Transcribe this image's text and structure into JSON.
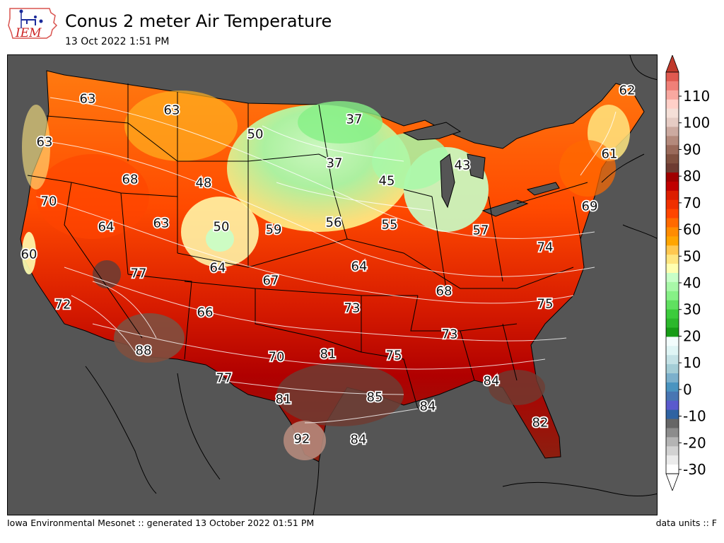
{
  "header": {
    "logo_text": "IEM",
    "title": "Conus 2 meter Air Temperature",
    "subtitle": "13 Oct 2022 1:51 PM"
  },
  "footer": {
    "left": "Iowa Environmental Mesonet :: generated 13 October 2022 01:51 PM",
    "right": "data units :: F"
  },
  "colorbar": {
    "tick_labels": [
      "110",
      "100",
      "90",
      "80",
      "70",
      "60",
      "50",
      "40",
      "30",
      "20",
      "10",
      "0",
      "-10",
      "-20",
      "-30"
    ],
    "colors": [
      "#ffffff",
      "#ebebeb",
      "#d2d2d2",
      "#b4b4b4",
      "#8c8c8c",
      "#666666",
      "#2f63a2",
      "#5a5acd",
      "#4876b3",
      "#4a94c0",
      "#7cb0cc",
      "#a4cdd6",
      "#c4e2e6",
      "#dff5f5",
      "#f2fcfc",
      "#179c17",
      "#2cb82c",
      "#3ccc3c",
      "#60e060",
      "#86f086",
      "#a8f8a8",
      "#c8ffc8",
      "#ffffb0",
      "#ffe680",
      "#ffc850",
      "#ffa500",
      "#ff8c00",
      "#ff6a00",
      "#ff4500",
      "#f03000",
      "#dc1e00",
      "#c00000",
      "#a00000",
      "#6e3c32",
      "#80503f",
      "#9a6a5a",
      "#b48a7c",
      "#ccaaa0",
      "#e6ccc4",
      "#f5e0d8",
      "#ffd0c8",
      "#f8a8a0",
      "#f08078",
      "#e05a50"
    ],
    "over_color": "#c0392b",
    "under_color": "#ffffff"
  },
  "map": {
    "ocean_color": "#555555",
    "labels": [
      {
        "value": "62",
        "region": "northern Maine"
      },
      {
        "value": "63",
        "region": "Washington"
      },
      {
        "value": "63",
        "region": "Montana"
      },
      {
        "value": "63",
        "region": "Oregon coast"
      },
      {
        "value": "50",
        "region": "eastern Montana"
      },
      {
        "value": "37",
        "region": "northern North Dakota"
      },
      {
        "value": "37",
        "region": "eastern South Dakota"
      },
      {
        "value": "45",
        "region": "Minnesota"
      },
      {
        "value": "43",
        "region": "Michigan"
      },
      {
        "value": "61",
        "region": "Vermont"
      },
      {
        "value": "68",
        "region": "Idaho"
      },
      {
        "value": "48",
        "region": "Wyoming"
      },
      {
        "value": "70",
        "region": "northern California"
      },
      {
        "value": "69",
        "region": "New Jersey"
      },
      {
        "value": "64",
        "region": "Nevada"
      },
      {
        "value": "63",
        "region": "Utah"
      },
      {
        "value": "50",
        "region": "northern Colorado"
      },
      {
        "value": "59",
        "region": "Nebraska"
      },
      {
        "value": "56",
        "region": "Iowa"
      },
      {
        "value": "55",
        "region": "Illinois"
      },
      {
        "value": "57",
        "region": "Ohio"
      },
      {
        "value": "74",
        "region": "Virginia"
      },
      {
        "value": "60",
        "region": "San Francisco"
      },
      {
        "value": "64",
        "region": "Colorado"
      },
      {
        "value": "67",
        "region": "Kansas"
      },
      {
        "value": "64",
        "region": "Missouri"
      },
      {
        "value": "77",
        "region": "Las Vegas"
      },
      {
        "value": "68",
        "region": "Kentucky"
      },
      {
        "value": "72",
        "region": "southern California"
      },
      {
        "value": "66",
        "region": "New Mexico"
      },
      {
        "value": "73",
        "region": "Oklahoma"
      },
      {
        "value": "75",
        "region": "North Carolina"
      },
      {
        "value": "73",
        "region": "Alabama"
      },
      {
        "value": "88",
        "region": "Arizona"
      },
      {
        "value": "70",
        "region": "Texas Panhandle"
      },
      {
        "value": "81",
        "region": "north Texas"
      },
      {
        "value": "75",
        "region": "Louisiana"
      },
      {
        "value": "77",
        "region": "west Texas"
      },
      {
        "value": "84",
        "region": "Georgia"
      },
      {
        "value": "81",
        "region": "central Texas"
      },
      {
        "value": "85",
        "region": "east Texas"
      },
      {
        "value": "84",
        "region": "Gulf coast"
      },
      {
        "value": "82",
        "region": "Florida"
      },
      {
        "value": "92",
        "region": "south Texas"
      },
      {
        "value": "84",
        "region": "Gulf of Mexico"
      }
    ]
  }
}
